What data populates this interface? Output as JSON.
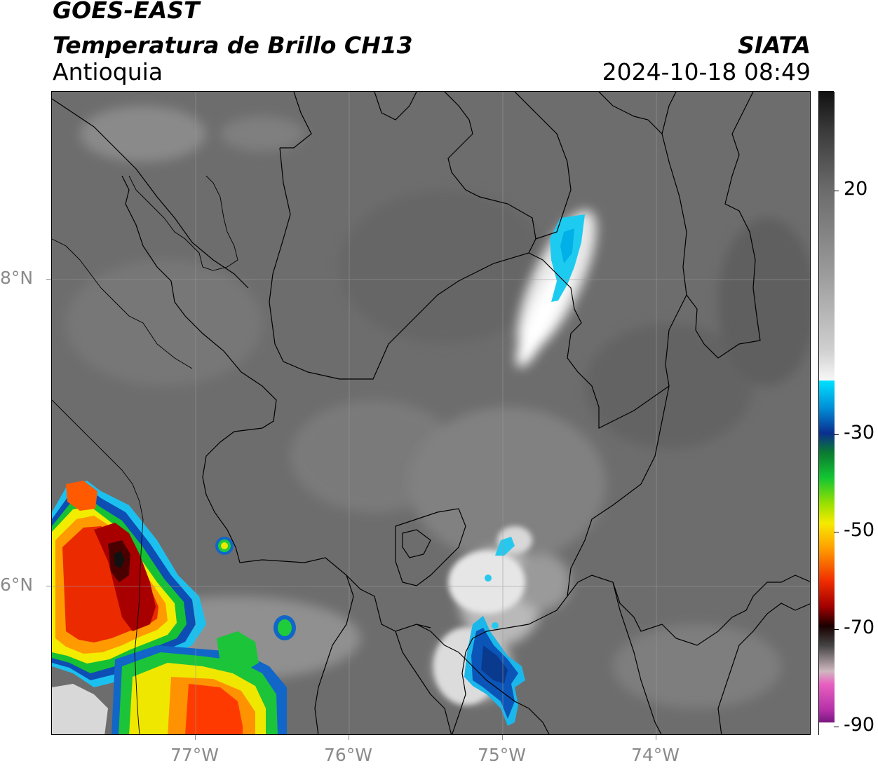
{
  "header": {
    "satellite": "GOES-EAST",
    "product": "Temperatura de Brillo CH13",
    "region": "Antioquia",
    "organization": "SIATA",
    "datetime": "2024-10-18 08:49"
  },
  "map": {
    "latitude_labels": [
      "8°N",
      "6°N"
    ],
    "longitude_labels": [
      "77°W",
      "76°W",
      "75°W",
      "74°W"
    ]
  },
  "colorbar": {
    "labels": [
      "20",
      "-30",
      "-50",
      "-70",
      "-90"
    ],
    "colors": {
      "warm_gray": "#6e6e6e",
      "white": "#f5f5f5",
      "cyan": "#00d8ff",
      "blue": "#0a3fa0",
      "green": "#12c12a",
      "yellow": "#f2ee00",
      "orange": "#ff8a00",
      "red": "#e01400",
      "dark_red": "#7a0000",
      "black": "#000000",
      "magenta": "#d23ad0"
    }
  }
}
